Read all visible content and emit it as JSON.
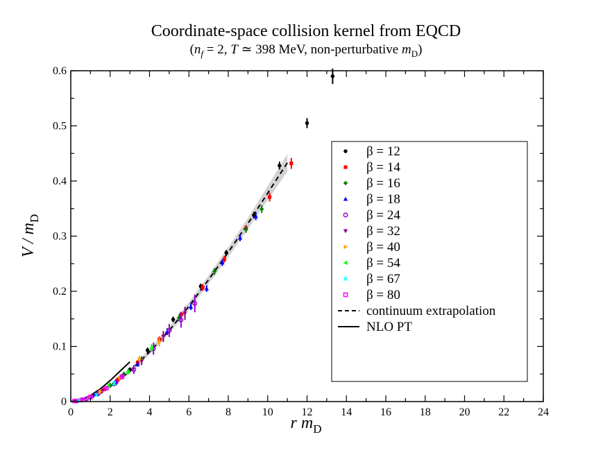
{
  "chart_data": {
    "type": "scatter",
    "title": "Coordinate-space collision kernel from EQCD",
    "subtitle": "(n_f = 2, T ≃ 398 MeV, non-perturbative m_D)",
    "subtitle_parts": {
      "open": "(",
      "nf_var": "n",
      "nf_sub": "f",
      "nf_rest": " = 2, ",
      "t_var": "T",
      "t_rest": " ≃ 398 MeV, non-perturbative ",
      "md_var": "m",
      "md_sub": "D",
      "close": ")"
    },
    "xlabel_parts": {
      "var": "r m",
      "sub": "D"
    },
    "ylabel_parts": {
      "var": "V / m",
      "sub": "D"
    },
    "xlim": [
      0,
      24
    ],
    "ylim": [
      0,
      0.6
    ],
    "x_ticks": [
      "0",
      "2",
      "4",
      "6",
      "8",
      "10",
      "12",
      "14",
      "16",
      "18",
      "20",
      "22",
      "24"
    ],
    "y_ticks": [
      "0",
      "0.1",
      "0.2",
      "0.3",
      "0.4",
      "0.5",
      "0.6"
    ],
    "grid": false,
    "legend_position": "right",
    "series": [
      {
        "name": "β = 12",
        "marker": "circle",
        "color": "#000000",
        "points": [
          [
            0.5,
            0.002,
            0.001
          ],
          [
            1.0,
            0.008,
            0.002
          ],
          [
            1.5,
            0.017,
            0.003
          ],
          [
            2.2,
            0.032,
            0.004
          ],
          [
            3.0,
            0.058,
            0.004
          ],
          [
            3.9,
            0.093,
            0.005
          ],
          [
            5.2,
            0.149,
            0.005
          ],
          [
            6.6,
            0.209,
            0.005
          ],
          [
            7.9,
            0.27,
            0.005
          ],
          [
            9.3,
            0.338,
            0.006
          ],
          [
            10.6,
            0.428,
            0.007
          ],
          [
            12.0,
            0.505,
            0.009
          ],
          [
            13.3,
            0.59,
            0.014
          ]
        ]
      },
      {
        "name": "β = 14",
        "marker": "square",
        "color": "#ff0000",
        "points": [
          [
            0.4,
            0.002,
            0.001
          ],
          [
            1.1,
            0.01,
            0.002
          ],
          [
            1.7,
            0.022,
            0.003
          ],
          [
            2.4,
            0.04,
            0.004
          ],
          [
            3.4,
            0.071,
            0.004
          ],
          [
            4.5,
            0.113,
            0.005
          ],
          [
            5.6,
            0.158,
            0.005
          ],
          [
            6.7,
            0.207,
            0.006
          ],
          [
            7.8,
            0.258,
            0.006
          ],
          [
            8.9,
            0.314,
            0.006
          ],
          [
            10.1,
            0.371,
            0.008
          ],
          [
            11.2,
            0.432,
            0.01
          ]
        ]
      },
      {
        "name": "β = 16",
        "marker": "diamond",
        "color": "#008000",
        "points": [
          [
            0.5,
            0.003,
            0.001
          ],
          [
            1.3,
            0.013,
            0.003
          ],
          [
            2.0,
            0.03,
            0.004
          ],
          [
            2.7,
            0.05,
            0.004
          ],
          [
            3.6,
            0.077,
            0.005
          ],
          [
            5.5,
            0.152,
            0.006
          ],
          [
            7.3,
            0.236,
            0.006
          ],
          [
            8.9,
            0.312,
            0.006
          ],
          [
            9.7,
            0.349,
            0.007
          ]
        ]
      },
      {
        "name": "β = 18",
        "marker": "triangle-up",
        "color": "#0000ff",
        "points": [
          [
            0.4,
            0.002,
            0.001
          ],
          [
            1.2,
            0.012,
            0.003
          ],
          [
            2.3,
            0.037,
            0.004
          ],
          [
            3.4,
            0.068,
            0.005
          ],
          [
            4.9,
            0.127,
            0.006
          ],
          [
            6.1,
            0.172,
            0.006
          ],
          [
            6.9,
            0.205,
            0.006
          ],
          [
            7.7,
            0.252,
            0.006
          ],
          [
            8.6,
            0.297,
            0.006
          ],
          [
            9.4,
            0.336,
            0.007
          ]
        ]
      },
      {
        "name": "β = 24",
        "marker": "open-circle",
        "color": "#9400d3",
        "points": [
          [
            0.3,
            0.001,
            0.001
          ],
          [
            0.8,
            0.005,
            0.002
          ],
          [
            1.4,
            0.015,
            0.005
          ],
          [
            2.3,
            0.035,
            0.006
          ],
          [
            3.2,
            0.058,
            0.008
          ],
          [
            4.2,
            0.096,
            0.011
          ],
          [
            5.0,
            0.129,
            0.012
          ],
          [
            5.6,
            0.148,
            0.014
          ],
          [
            6.3,
            0.178,
            0.016
          ]
        ]
      },
      {
        "name": "β = 32",
        "marker": "triangle-down",
        "color": "#8b008b",
        "points": [
          [
            0.6,
            0.004,
            0.002
          ],
          [
            1.6,
            0.019,
            0.004
          ],
          [
            2.6,
            0.045,
            0.005
          ],
          [
            3.6,
            0.073,
            0.007
          ],
          [
            4.7,
            0.118,
            0.01
          ],
          [
            5.8,
            0.16,
            0.012
          ]
        ]
      },
      {
        "name": "β = 40",
        "marker": "triangle-right",
        "color": "#ffa500",
        "points": [
          [
            0.5,
            0.003,
            0.002
          ],
          [
            1.5,
            0.018,
            0.004
          ],
          [
            2.5,
            0.043,
            0.005
          ],
          [
            3.5,
            0.077,
            0.006
          ],
          [
            4.5,
            0.108,
            0.008
          ]
        ]
      },
      {
        "name": "β = 54",
        "marker": "triangle-left",
        "color": "#00ff00",
        "points": [
          [
            0.9,
            0.007,
            0.002
          ],
          [
            1.9,
            0.028,
            0.004
          ],
          [
            2.9,
            0.054,
            0.005
          ],
          [
            4.1,
            0.097,
            0.007
          ]
        ]
      },
      {
        "name": "β = 67",
        "marker": "x",
        "color": "#00ffff",
        "points": [
          [
            0.4,
            0.002,
            0.001
          ],
          [
            1.3,
            0.012,
            0.003
          ],
          [
            2.2,
            0.033,
            0.004
          ]
        ]
      },
      {
        "name": "β = 80",
        "marker": "open-square",
        "color": "#ff00ff",
        "points": [
          [
            0.2,
            0.001,
            0.001
          ],
          [
            0.6,
            0.003,
            0.001
          ],
          [
            1.0,
            0.008,
            0.002
          ],
          [
            1.8,
            0.024,
            0.003
          ],
          [
            2.6,
            0.045,
            0.004
          ]
        ]
      }
    ],
    "continuum_extrapolation": {
      "name": "continuum extrapolation",
      "style": "dashed",
      "color": "#000000",
      "band_color": "#d3d3d3",
      "points": [
        [
          0,
          0,
          0.001
        ],
        [
          1,
          0.008,
          0.002
        ],
        [
          2,
          0.027,
          0.003
        ],
        [
          3,
          0.055,
          0.004
        ],
        [
          4,
          0.09,
          0.005
        ],
        [
          5,
          0.129,
          0.006
        ],
        [
          6,
          0.173,
          0.007
        ],
        [
          7,
          0.221,
          0.008
        ],
        [
          8,
          0.271,
          0.009
        ],
        [
          9,
          0.323,
          0.01
        ],
        [
          10,
          0.378,
          0.013
        ],
        [
          11,
          0.433,
          0.016
        ]
      ]
    },
    "nlo_pt": {
      "name": "NLO PT",
      "style": "solid",
      "color": "#000000",
      "points": [
        [
          0,
          0
        ],
        [
          0.5,
          0.003
        ],
        [
          1.0,
          0.011
        ],
        [
          1.5,
          0.023
        ],
        [
          2.0,
          0.038
        ],
        [
          2.5,
          0.055
        ],
        [
          3.0,
          0.072
        ]
      ]
    }
  }
}
